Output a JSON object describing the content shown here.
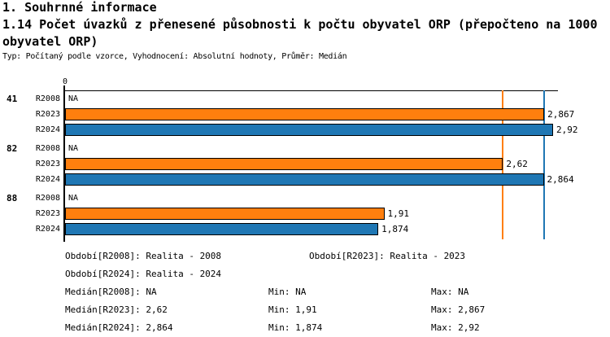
{
  "header": {
    "section_title": "1. Souhrnné informace",
    "title_line1": "1.14 Počet úvazků z přenesené působnosti k počtu obyvatel ORP (přepočteno na 1000",
    "title_line2": " obyvatel ORP)",
    "meta_line": "Typ: Počítaný podle vzorce, Vyhodnocení: Absolutní hodnoty, Průměr: Medián"
  },
  "chart_data": {
    "type": "bar",
    "orientation": "horizontal",
    "value_axis": {
      "zero_label": "0",
      "min": 0,
      "max": 2.95,
      "grid": false
    },
    "categories": [
      "41",
      "82",
      "88"
    ],
    "series": [
      {
        "name": "R2008",
        "color": null,
        "values": [
          null,
          null,
          null
        ],
        "displays": [
          "NA",
          "NA",
          "NA"
        ]
      },
      {
        "name": "R2023",
        "color": "#ff7f0e",
        "values": [
          2.867,
          2.62,
          1.91
        ],
        "displays": [
          "2,867",
          "2,62",
          "1,91"
        ]
      },
      {
        "name": "R2024",
        "color": "#1f77b4",
        "values": [
          2.92,
          2.864,
          1.874
        ],
        "displays": [
          "2,92",
          "2,864",
          "1,874"
        ]
      }
    ],
    "reference_lines": [
      {
        "series": "R2023",
        "stat": "median",
        "value": 2.62,
        "color": "#ff7f0e"
      },
      {
        "series": "R2024",
        "stat": "median",
        "value": 2.864,
        "color": "#1f77b4"
      }
    ],
    "statistics": {
      "median": {
        "R2008": "NA",
        "R2023": "2,62",
        "R2024": "2,864"
      },
      "min": {
        "R2008": "NA",
        "R2023": "1,91",
        "R2024": "1,874"
      },
      "max": {
        "R2008": "NA",
        "R2023": "2,867",
        "R2024": "2,92"
      }
    },
    "bar_border_color": "#000000"
  },
  "legend": {
    "period_lines": [
      "Období[R2008]: Realita - 2008",
      "Období[R2023]: Realita - 2023",
      "Období[R2024]: Realita - 2024"
    ],
    "stat_rows": [
      [
        "Medián[R2008]: NA",
        "Min: NA",
        "Max: NA"
      ],
      [
        "Medián[R2023]: 2,62",
        "Min: 1,91",
        "Max: 2,867"
      ],
      [
        "Medián[R2024]: 2,864",
        "Min: 1,874",
        "Max: 2,92"
      ]
    ]
  }
}
